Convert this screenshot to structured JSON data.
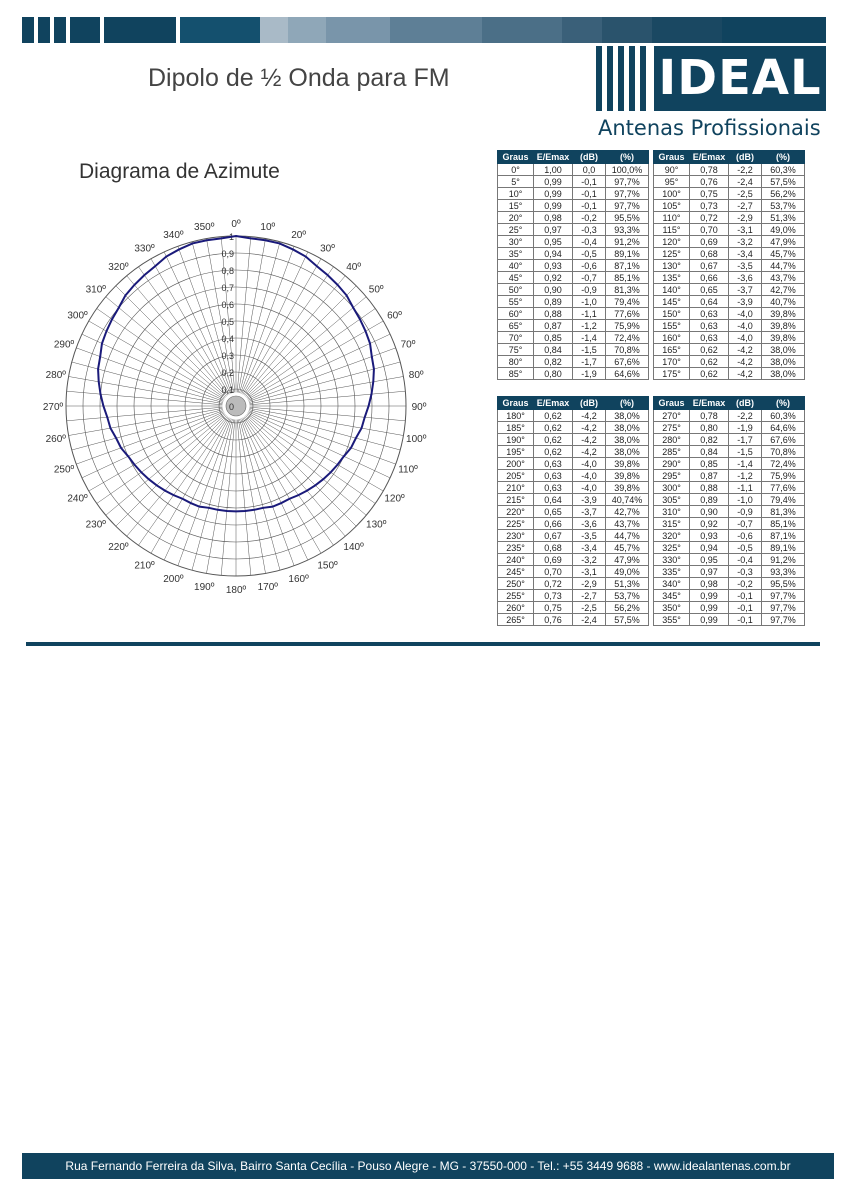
{
  "header": {
    "title": "Dipolo de ½ Onda para FM",
    "subtitle": "Diagrama de Azimute",
    "top_bar_colors": [
      "#10435e",
      "#ffffff",
      "#10435e",
      "#ffffff",
      "#10435e",
      "#ffffff",
      "#10435e",
      "#ffffff",
      "#10435e",
      "#ffffff",
      "#14506e",
      "#a9bac7",
      "#8fa7b8",
      "#7995aa",
      "#5e7f96",
      "#4b6f87",
      "#3a6079",
      "#2a536c",
      "#1a4862",
      "#10435e"
    ]
  },
  "logo": {
    "brand": "IDEAL",
    "tagline": "Antenas Profissionais",
    "color": "#10435e"
  },
  "chart_data": {
    "type": "polar",
    "title": "Diagrama de Azimute",
    "angle_labels": [
      "0º",
      "10º",
      "20º",
      "30º",
      "40º",
      "50º",
      "60º",
      "70º",
      "80º",
      "90º",
      "100º",
      "110º",
      "120º",
      "130º",
      "140º",
      "150º",
      "160º",
      "170º",
      "180º",
      "190º",
      "200º",
      "210º",
      "220º",
      "230º",
      "240º",
      "250º",
      "260º",
      "270º",
      "280º",
      "290º",
      "300º",
      "310º",
      "320º",
      "330º",
      "340º",
      "350º"
    ],
    "radial_labels": [
      "0",
      "0,1",
      "0,2",
      "0,3",
      "0,4",
      "0,5",
      "0,6",
      "0,7",
      "0,8",
      "0,9",
      "1"
    ],
    "rlim": [
      0,
      1
    ],
    "series_color": "#1a1a7a",
    "angles_deg": [
      0,
      5,
      10,
      15,
      20,
      25,
      30,
      35,
      40,
      45,
      50,
      55,
      60,
      65,
      70,
      75,
      80,
      85,
      90,
      95,
      100,
      105,
      110,
      115,
      120,
      125,
      130,
      135,
      140,
      145,
      150,
      155,
      160,
      165,
      170,
      175,
      180,
      185,
      190,
      195,
      200,
      205,
      210,
      215,
      220,
      225,
      230,
      235,
      240,
      245,
      250,
      255,
      260,
      265,
      270,
      275,
      280,
      285,
      290,
      295,
      300,
      305,
      310,
      315,
      320,
      325,
      330,
      335,
      340,
      345,
      350,
      355
    ],
    "values": [
      1.0,
      0.99,
      0.99,
      0.99,
      0.98,
      0.97,
      0.95,
      0.94,
      0.93,
      0.92,
      0.9,
      0.89,
      0.88,
      0.87,
      0.85,
      0.84,
      0.82,
      0.8,
      0.78,
      0.76,
      0.75,
      0.73,
      0.72,
      0.7,
      0.69,
      0.68,
      0.67,
      0.66,
      0.65,
      0.64,
      0.63,
      0.63,
      0.63,
      0.62,
      0.62,
      0.62,
      0.62,
      0.62,
      0.62,
      0.62,
      0.63,
      0.63,
      0.63,
      0.64,
      0.65,
      0.66,
      0.67,
      0.68,
      0.69,
      0.7,
      0.72,
      0.73,
      0.75,
      0.76,
      0.78,
      0.8,
      0.82,
      0.84,
      0.85,
      0.87,
      0.88,
      0.89,
      0.9,
      0.92,
      0.93,
      0.94,
      0.95,
      0.97,
      0.98,
      0.99,
      0.99,
      0.99
    ]
  },
  "tables": {
    "headers": [
      "Graus",
      "E/Emax",
      "(dB)",
      "(%)"
    ],
    "top": [
      [
        [
          "0°",
          "1,00",
          "0,0",
          "100,0%"
        ],
        [
          "90°",
          "0,78",
          "-2,2",
          "60,3%"
        ]
      ],
      [
        [
          "5°",
          "0,99",
          "-0,1",
          "97,7%"
        ],
        [
          "95°",
          "0,76",
          "-2,4",
          "57,5%"
        ]
      ],
      [
        [
          "10°",
          "0,99",
          "-0,1",
          "97,7%"
        ],
        [
          "100°",
          "0,75",
          "-2,5",
          "56,2%"
        ]
      ],
      [
        [
          "15°",
          "0,99",
          "-0,1",
          "97,7%"
        ],
        [
          "105°",
          "0,73",
          "-2,7",
          "53,7%"
        ]
      ],
      [
        [
          "20°",
          "0,98",
          "-0,2",
          "95,5%"
        ],
        [
          "110°",
          "0,72",
          "-2,9",
          "51,3%"
        ]
      ],
      [
        [
          "25°",
          "0,97",
          "-0,3",
          "93,3%"
        ],
        [
          "115°",
          "0,70",
          "-3,1",
          "49,0%"
        ]
      ],
      [
        [
          "30°",
          "0,95",
          "-0,4",
          "91,2%"
        ],
        [
          "120°",
          "0,69",
          "-3,2",
          "47,9%"
        ]
      ],
      [
        [
          "35°",
          "0,94",
          "-0,5",
          "89,1%"
        ],
        [
          "125°",
          "0,68",
          "-3,4",
          "45,7%"
        ]
      ],
      [
        [
          "40°",
          "0,93",
          "-0,6",
          "87,1%"
        ],
        [
          "130°",
          "0,67",
          "-3,5",
          "44,7%"
        ]
      ],
      [
        [
          "45°",
          "0,92",
          "-0,7",
          "85,1%"
        ],
        [
          "135°",
          "0,66",
          "-3,6",
          "43,7%"
        ]
      ],
      [
        [
          "50°",
          "0,90",
          "-0,9",
          "81,3%"
        ],
        [
          "140°",
          "0,65",
          "-3,7",
          "42,7%"
        ]
      ],
      [
        [
          "55°",
          "0,89",
          "-1,0",
          "79,4%"
        ],
        [
          "145°",
          "0,64",
          "-3,9",
          "40,7%"
        ]
      ],
      [
        [
          "60°",
          "0,88",
          "-1,1",
          "77,6%"
        ],
        [
          "150°",
          "0,63",
          "-4,0",
          "39,8%"
        ]
      ],
      [
        [
          "65°",
          "0,87",
          "-1,2",
          "75,9%"
        ],
        [
          "155°",
          "0,63",
          "-4,0",
          "39,8%"
        ]
      ],
      [
        [
          "70°",
          "0,85",
          "-1,4",
          "72,4%"
        ],
        [
          "160°",
          "0,63",
          "-4,0",
          "39,8%"
        ]
      ],
      [
        [
          "75°",
          "0,84",
          "-1,5",
          "70,8%"
        ],
        [
          "165°",
          "0,62",
          "-4,2",
          "38,0%"
        ]
      ],
      [
        [
          "80°",
          "0,82",
          "-1,7",
          "67,6%"
        ],
        [
          "170°",
          "0,62",
          "-4,2",
          "38,0%"
        ]
      ],
      [
        [
          "85°",
          "0,80",
          "-1,9",
          "64,6%"
        ],
        [
          "175°",
          "0,62",
          "-4,2",
          "38,0%"
        ]
      ]
    ],
    "bottom": [
      [
        [
          "180°",
          "0,62",
          "-4,2",
          "38,0%"
        ],
        [
          "270°",
          "0,78",
          "-2,2",
          "60,3%"
        ]
      ],
      [
        [
          "185°",
          "0,62",
          "-4,2",
          "38,0%"
        ],
        [
          "275°",
          "0,80",
          "-1,9",
          "64,6%"
        ]
      ],
      [
        [
          "190°",
          "0,62",
          "-4,2",
          "38,0%"
        ],
        [
          "280°",
          "0,82",
          "-1,7",
          "67,6%"
        ]
      ],
      [
        [
          "195°",
          "0,62",
          "-4,2",
          "38,0%"
        ],
        [
          "285°",
          "0,84",
          "-1,5",
          "70,8%"
        ]
      ],
      [
        [
          "200°",
          "0,63",
          "-4,0",
          "39,8%"
        ],
        [
          "290°",
          "0,85",
          "-1,4",
          "72,4%"
        ]
      ],
      [
        [
          "205°",
          "0,63",
          "-4,0",
          "39,8%"
        ],
        [
          "295°",
          "0,87",
          "-1,2",
          "75,9%"
        ]
      ],
      [
        [
          "210°",
          "0,63",
          "-4,0",
          "39,8%"
        ],
        [
          "300°",
          "0,88",
          "-1,1",
          "77,6%"
        ]
      ],
      [
        [
          "215°",
          "0,64",
          "-3,9",
          "40,74%"
        ],
        [
          "305°",
          "0,89",
          "-1,0",
          "79,4%"
        ]
      ],
      [
        [
          "220°",
          "0,65",
          "-3,7",
          "42,7%"
        ],
        [
          "310°",
          "0,90",
          "-0,9",
          "81,3%"
        ]
      ],
      [
        [
          "225°",
          "0,66",
          "-3,6",
          "43,7%"
        ],
        [
          "315°",
          "0,92",
          "-0,7",
          "85,1%"
        ]
      ],
      [
        [
          "230°",
          "0,67",
          "-3,5",
          "44,7%"
        ],
        [
          "320°",
          "0,93",
          "-0,6",
          "87,1%"
        ]
      ],
      [
        [
          "235°",
          "0,68",
          "-3,4",
          "45,7%"
        ],
        [
          "325°",
          "0,94",
          "-0,5",
          "89,1%"
        ]
      ],
      [
        [
          "240°",
          "0,69",
          "-3,2",
          "47,9%"
        ],
        [
          "330°",
          "0,95",
          "-0,4",
          "91,2%"
        ]
      ],
      [
        [
          "245°",
          "0,70",
          "-3,1",
          "49,0%"
        ],
        [
          "335°",
          "0,97",
          "-0,3",
          "93,3%"
        ]
      ],
      [
        [
          "250°",
          "0,72",
          "-2,9",
          "51,3%"
        ],
        [
          "340°",
          "0,98",
          "-0,2",
          "95,5%"
        ]
      ],
      [
        [
          "255°",
          "0,73",
          "-2,7",
          "53,7%"
        ],
        [
          "345°",
          "0,99",
          "-0,1",
          "97,7%"
        ]
      ],
      [
        [
          "260°",
          "0,75",
          "-2,5",
          "56,2%"
        ],
        [
          "350°",
          "0,99",
          "-0,1",
          "97,7%"
        ]
      ],
      [
        [
          "265°",
          "0,76",
          "-2,4",
          "57,5%"
        ],
        [
          "355°",
          "0,99",
          "-0,1",
          "97,7%"
        ]
      ]
    ]
  },
  "footer": {
    "address": "Rua Fernando Ferreira da Silva, Bairro Santa Cecília - Pouso Alegre - MG - 37550-000 - Tel.: +55 3449 9688  - www.idealantenas.com.br"
  }
}
